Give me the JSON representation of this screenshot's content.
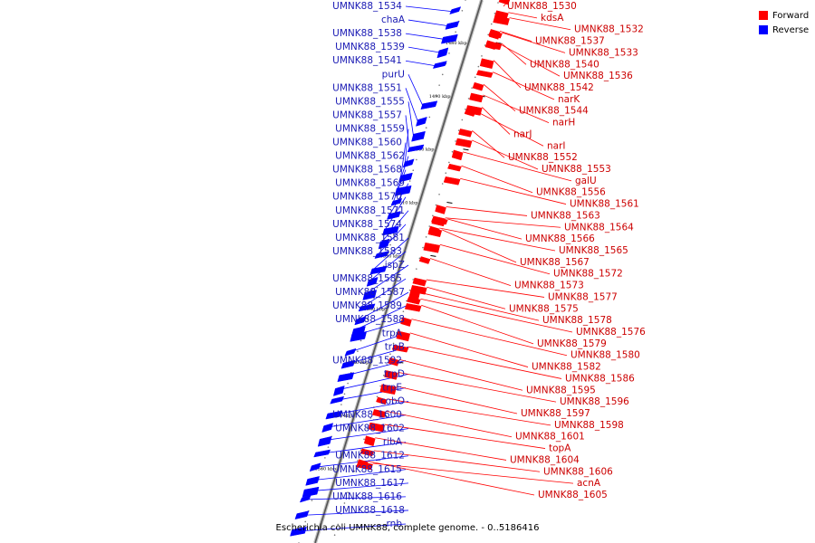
{
  "legend": {
    "forward_label": "Forward",
    "reverse_label": "Reverse",
    "forward_color": "#ff0000",
    "reverse_color": "#0000ff"
  },
  "caption": "Escherichia coli UMNK88, complete genome. - 0..5186416",
  "ticks": [
    {
      "pos": 1480,
      "label": "1480 kbp"
    },
    {
      "pos": 1490,
      "label": "1490 kbp"
    },
    {
      "pos": 1500,
      "label": "1500 kbp"
    },
    {
      "pos": 1510,
      "label": "1510 kbp"
    },
    {
      "pos": 1520,
      "label": "1520 kbp"
    },
    {
      "pos": 1530,
      "label": "1530 kbp"
    },
    {
      "pos": 1540,
      "label": "1540 kbp"
    },
    {
      "pos": 1550,
      "label": "1550 kbp"
    },
    {
      "pos": 1560,
      "label": "1560 kbp"
    }
  ],
  "reverse_genes": [
    {
      "name": "UMNK88_1534",
      "pos": 1473.8
    },
    {
      "name": "chaA",
      "pos": 1476.5
    },
    {
      "name": "UMNK88_1538",
      "pos": 1479.0
    },
    {
      "name": "UMNK88_1539",
      "pos": 1481.5
    },
    {
      "name": "UMNK88_1541",
      "pos": 1484.0
    },
    {
      "name": "purU",
      "pos": 1491.5
    },
    {
      "name": "UMNK88_1551",
      "pos": 1494.5
    },
    {
      "name": "UMNK88_1555",
      "pos": 1497.2
    },
    {
      "name": "UMNK88_1557",
      "pos": 1499.7
    },
    {
      "name": "UMNK88_1559",
      "pos": 1502.4
    },
    {
      "name": "UMNK88_1560",
      "pos": 1505.0
    },
    {
      "name": "UMNK88_1562",
      "pos": 1507.4
    },
    {
      "name": "UMNK88_1568",
      "pos": 1509.8
    },
    {
      "name": "UMNK88_1569",
      "pos": 1512.2
    },
    {
      "name": "UMNK88_1570",
      "pos": 1515.0
    },
    {
      "name": "UMNK88_1571",
      "pos": 1517.4
    },
    {
      "name": "UMNK88_1574",
      "pos": 1519.7
    },
    {
      "name": "UMNK88_1581",
      "pos": 1522.5
    },
    {
      "name": "UMNK88_1583",
      "pos": 1524.6
    },
    {
      "name": "ispZ",
      "pos": 1527.0
    },
    {
      "name": "UMNK88_1585",
      "pos": 1529.6
    },
    {
      "name": "UMNK88_1587",
      "pos": 1532.0
    },
    {
      "name": "UMNK88_1589",
      "pos": 1533.8
    },
    {
      "name": "UMNK88_1588",
      "pos": 1534.8
    },
    {
      "name": "trpA",
      "pos": 1538.0
    },
    {
      "name": "trpB",
      "pos": 1540.2
    },
    {
      "name": "UMNK88_1592",
      "pos": 1542.5
    },
    {
      "name": "trpD",
      "pos": 1545.0
    },
    {
      "name": "trpE",
      "pos": 1547.0
    },
    {
      "name": "cobO",
      "pos": 1549.7
    },
    {
      "name": "UMNK88_1600",
      "pos": 1552.0
    },
    {
      "name": "UMNK88_1602",
      "pos": 1554.5
    },
    {
      "name": "ribA",
      "pos": 1557.0
    },
    {
      "name": "UMNK88_1612",
      "pos": 1559.5
    },
    {
      "name": "UMNK88_1615",
      "pos": 1562.0
    },
    {
      "name": "UMNK88_1617",
      "pos": 1564.0
    },
    {
      "name": "UMNK88_1616",
      "pos": 1565.5
    },
    {
      "name": "UMNK88_1618",
      "pos": 1568.5
    },
    {
      "name": "rnb",
      "pos": 1571.5
    }
  ],
  "forward_genes": [
    {
      "name": "UMNK88_1530",
      "pos": 1471.5
    },
    {
      "name": "kdsA",
      "pos": 1474.0
    },
    {
      "name": "UMNK88_1532",
      "pos": 1475.0
    },
    {
      "name": "UMNK88_1537",
      "pos": 1477.5
    },
    {
      "name": "UMNK88_1533",
      "pos": 1477.8
    },
    {
      "name": "UMNK88_1540",
      "pos": 1479.8
    },
    {
      "name": "UMNK88_1536",
      "pos": 1479.6
    },
    {
      "name": "UMNK88_1542",
      "pos": 1483.0
    },
    {
      "name": "narK",
      "pos": 1485.2
    },
    {
      "name": "UMNK88_1544",
      "pos": 1487.5
    },
    {
      "name": "narH",
      "pos": 1489.5
    },
    {
      "name": "narJ",
      "pos": 1491.8
    },
    {
      "name": "narI",
      "pos": 1492.5
    },
    {
      "name": "UMNK88_1552",
      "pos": 1496.2
    },
    {
      "name": "UMNK88_1553",
      "pos": 1498.0
    },
    {
      "name": "galU",
      "pos": 1500.2
    },
    {
      "name": "UMNK88_1556",
      "pos": 1502.8
    },
    {
      "name": "UMNK88_1561",
      "pos": 1505.2
    },
    {
      "name": "UMNK88_1563",
      "pos": 1510.5
    },
    {
      "name": "UMNK88_1564",
      "pos": 1512.6
    },
    {
      "name": "UMNK88_1566",
      "pos": 1512.8
    },
    {
      "name": "UMNK88_1565",
      "pos": 1514.5
    },
    {
      "name": "UMNK88_1567",
      "pos": 1514.8
    },
    {
      "name": "UMNK88_1572",
      "pos": 1517.6
    },
    {
      "name": "UMNK88_1573",
      "pos": 1520.2
    },
    {
      "name": "UMNK88_1577",
      "pos": 1524.2
    },
    {
      "name": "UMNK88_1575",
      "pos": 1525.6
    },
    {
      "name": "UMNK88_1578",
      "pos": 1526.6
    },
    {
      "name": "UMNK88_1576",
      "pos": 1527.8
    },
    {
      "name": "UMNK88_1579",
      "pos": 1529.0
    },
    {
      "name": "UMNK88_1580",
      "pos": 1531.6
    },
    {
      "name": "UMNK88_1582",
      "pos": 1534.2
    },
    {
      "name": "UMNK88_1586",
      "pos": 1536.8
    },
    {
      "name": "UMNK88_1595",
      "pos": 1539.2
    },
    {
      "name": "UMNK88_1596",
      "pos": 1541.6
    },
    {
      "name": "UMNK88_1597",
      "pos": 1544.2
    },
    {
      "name": "UMNK88_1598",
      "pos": 1546.6
    },
    {
      "name": "UMNK88_1601",
      "pos": 1548.9
    },
    {
      "name": "topA",
      "pos": 1551.4
    },
    {
      "name": "UMNK88_1604",
      "pos": 1553.9
    },
    {
      "name": "UMNK88_1606",
      "pos": 1556.3
    },
    {
      "name": "acnA",
      "pos": 1558.7
    },
    {
      "name": "UMNK88_1605",
      "pos": 1558.3
    }
  ]
}
